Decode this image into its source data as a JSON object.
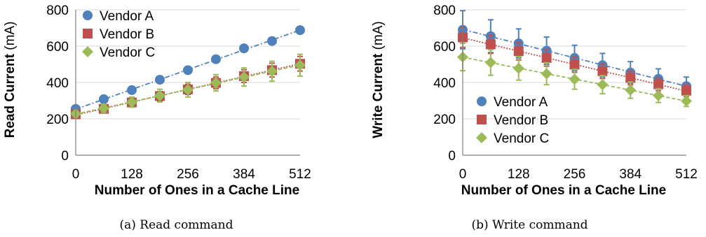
{
  "chart_data": [
    {
      "type": "line",
      "title": "",
      "caption": "(a) Read command",
      "xlabel": "Number of Ones in a Cache Line",
      "ylabel_bold": "Read Current",
      "ylabel_unit": "(mA)",
      "xlim": [
        0,
        512
      ],
      "ylim": [
        0,
        800
      ],
      "xticks": [
        "0",
        "128",
        "256",
        "384",
        "512"
      ],
      "yticks": [
        "0",
        "200",
        "400",
        "600",
        "800"
      ],
      "grid": true,
      "legend_position": "top-left",
      "x": [
        0,
        64,
        128,
        192,
        256,
        320,
        384,
        448,
        512
      ],
      "series": [
        {
          "name": "Vendor A",
          "marker": "circle",
          "color": "#4f81bd",
          "values": [
            255,
            308,
            358,
            415,
            468,
            528,
            588,
            628,
            688
          ],
          "error": [
            8,
            8,
            8,
            8,
            8,
            8,
            8,
            8,
            8
          ]
        },
        {
          "name": "Vendor B",
          "marker": "square",
          "color": "#c0504d",
          "values": [
            225,
            255,
            290,
            325,
            362,
            398,
            435,
            468,
            503
          ],
          "error": [
            12,
            18,
            22,
            25,
            28,
            32,
            35,
            38,
            40
          ]
        },
        {
          "name": "Vendor C",
          "marker": "diamond",
          "color": "#9bbb59",
          "values": [
            228,
            258,
            292,
            328,
            360,
            398,
            430,
            462,
            495
          ],
          "error": [
            15,
            22,
            28,
            35,
            40,
            45,
            50,
            55,
            60
          ]
        }
      ]
    },
    {
      "type": "line",
      "title": "",
      "caption": "(b) Write command",
      "xlabel": "Number of Ones in a Cache Line",
      "ylabel_bold": "Write Current",
      "ylabel_unit": "(mA)",
      "xlim": [
        0,
        512
      ],
      "ylim": [
        0,
        800
      ],
      "xticks": [
        "0",
        "128",
        "256",
        "384",
        "512"
      ],
      "yticks": [
        "0",
        "200",
        "400",
        "600",
        "800"
      ],
      "grid": true,
      "legend_position": "bottom-left",
      "x": [
        0,
        64,
        128,
        192,
        256,
        320,
        384,
        448,
        512
      ],
      "series": [
        {
          "name": "Vendor A",
          "marker": "circle",
          "color": "#4f81bd",
          "values": [
            690,
            655,
            615,
            575,
            535,
            495,
            455,
            420,
            380
          ],
          "error": [
            105,
            90,
            80,
            75,
            70,
            65,
            60,
            55,
            50
          ]
        },
        {
          "name": "Vendor B",
          "marker": "square",
          "color": "#c0504d",
          "values": [
            648,
            610,
            572,
            535,
            498,
            462,
            425,
            390,
            355
          ],
          "error": [
            55,
            50,
            48,
            45,
            42,
            40,
            38,
            35,
            32
          ]
        },
        {
          "name": "Vendor C",
          "marker": "diamond",
          "color": "#9bbb59",
          "values": [
            540,
            510,
            478,
            448,
            418,
            388,
            358,
            328,
            298
          ],
          "error": [
            75,
            70,
            65,
            60,
            55,
            50,
            45,
            38,
            30
          ]
        }
      ]
    }
  ]
}
